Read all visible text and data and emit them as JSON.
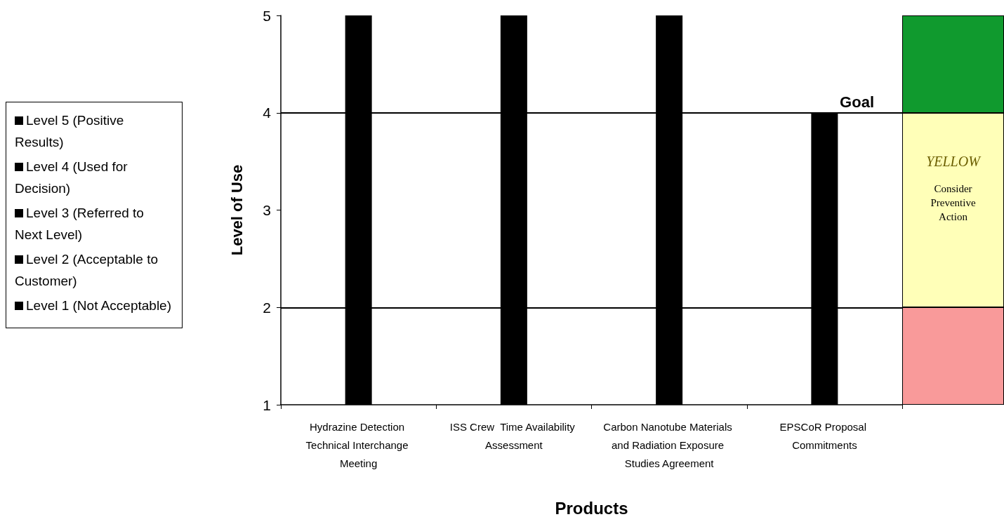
{
  "chart_data": {
    "type": "bar",
    "xlabel": "Products",
    "ylabel": "Level of Use",
    "categories": [
      "Hydrazine Detection Technical Interchange Meeting",
      "ISS Crew  Time Availability Assessment",
      "Carbon Nanotube Materials and Radiation Exposure Studies Agreement",
      "EPSCoR Proposal Commitments"
    ],
    "values": [
      5,
      5,
      5,
      4
    ],
    "color": "#000000",
    "ylim": [
      1,
      5
    ],
    "yticks": [
      1,
      2,
      3,
      4,
      5
    ],
    "grid": false,
    "ref_lines": [
      {
        "axis": "y",
        "value": 4,
        "label": "Goal",
        "color": "#000000"
      },
      {
        "axis": "y",
        "value": 2,
        "color": "#000000"
      }
    ],
    "annotations": [
      "Level 5  (Positive Results)",
      "Level 4  (Used for Decision)",
      "Level 3  (Referred to Next Level)",
      "Level 2  (Acceptable to Customer)",
      "Level 1  (Not Acceptable)",
      "YELLOW",
      "Consider Preventive Action"
    ]
  }
}
